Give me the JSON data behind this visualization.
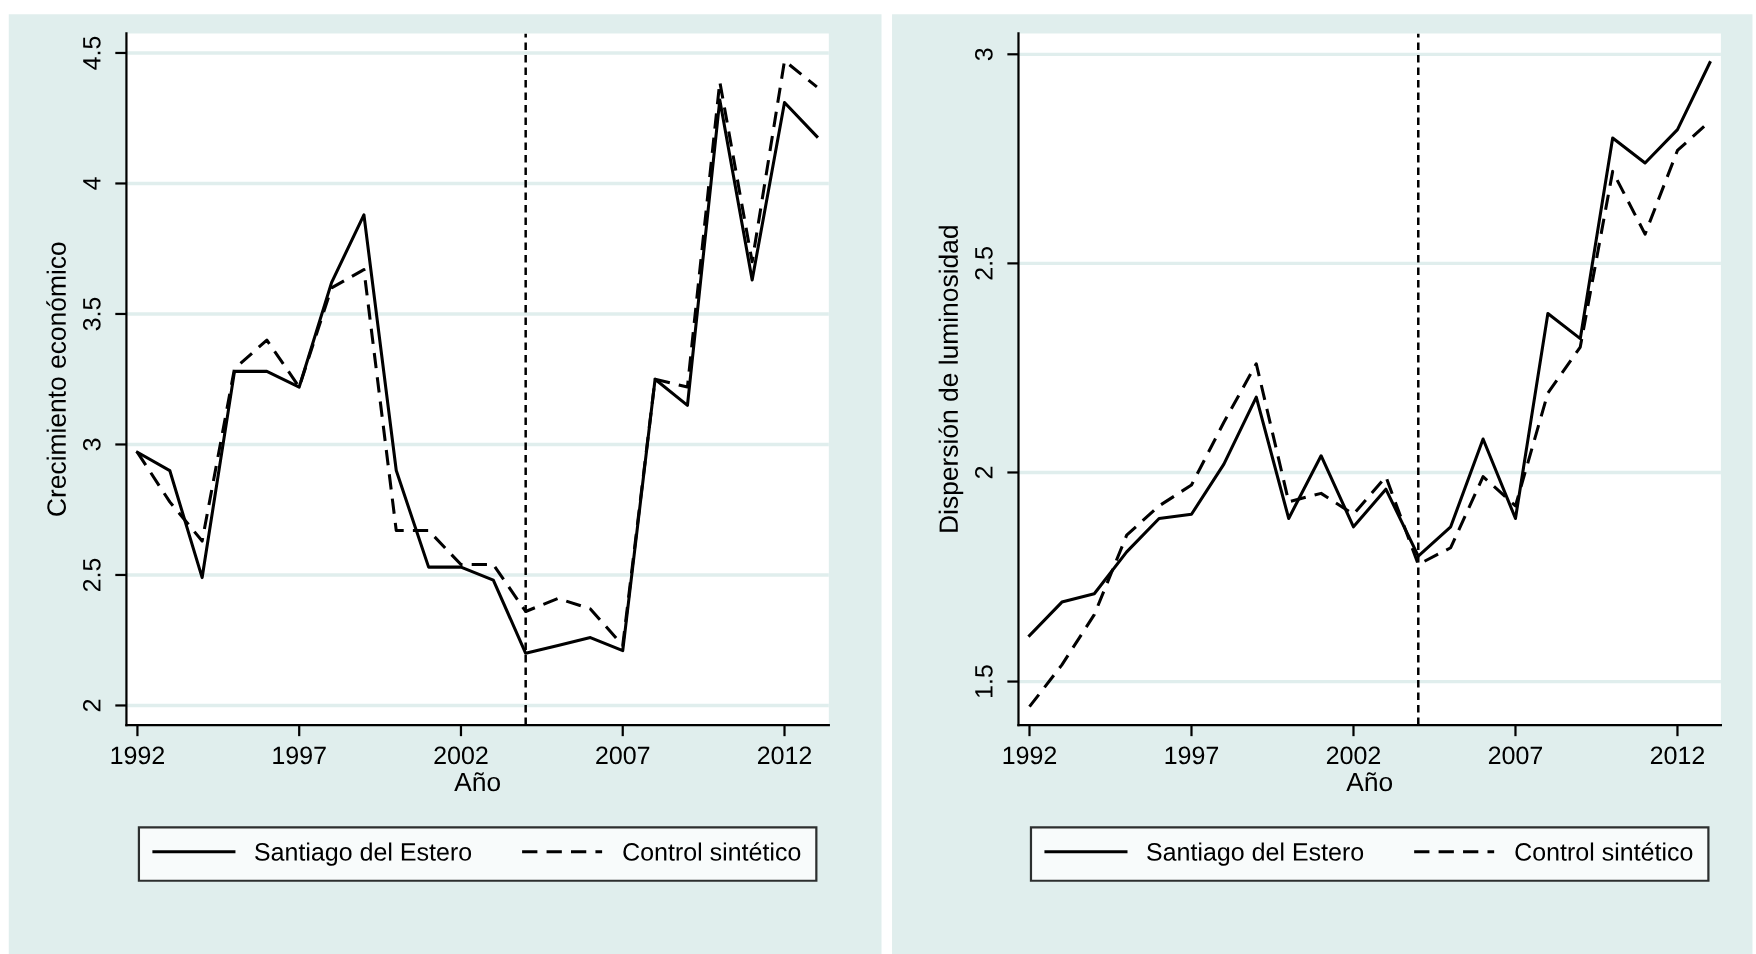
{
  "chart_data": [
    {
      "type": "line",
      "xlabel": "Año",
      "ylabel": "Crecimiento económico",
      "xlim": [
        1991.66,
        2013.37
      ],
      "ylim": [
        1.925,
        4.575
      ],
      "xticks": [
        1992,
        1997,
        2002,
        2007,
        2012
      ],
      "yticks": [
        {
          "value": 2,
          "label": "2"
        },
        {
          "value": 2.5,
          "label": "2.5"
        },
        {
          "value": 3,
          "label": "3"
        },
        {
          "value": 3.5,
          "label": "3.5"
        },
        {
          "value": 4,
          "label": "4"
        },
        {
          "value": 4.5,
          "label": "4.5"
        }
      ],
      "grid": "y",
      "legend": "bottom",
      "x": [
        1992,
        1993,
        1994,
        1995,
        1996,
        1997,
        1998,
        1999,
        2000,
        2001,
        2002,
        2003,
        2004,
        2005,
        2006,
        2007,
        2008,
        2009,
        2010,
        2011,
        2012,
        2013
      ],
      "series": [
        {
          "name": "Santiago del Estero",
          "color": "#000000",
          "line_style": "solid",
          "values": [
            2.97,
            2.9,
            2.49,
            3.28,
            3.28,
            3.22,
            3.62,
            3.88,
            2.9,
            2.53,
            2.53,
            2.48,
            2.2,
            2.23,
            2.26,
            2.21,
            3.25,
            3.15,
            4.32,
            3.63,
            4.31,
            4.18
          ]
        },
        {
          "name": "Control sintético",
          "color": "#000000",
          "line_style": "dashed",
          "values": [
            2.97,
            2.78,
            2.63,
            3.29,
            3.4,
            3.22,
            3.6,
            3.67,
            2.67,
            2.67,
            2.54,
            2.54,
            2.36,
            2.41,
            2.37,
            2.23,
            3.25,
            3.22,
            4.39,
            3.7,
            4.47,
            4.37
          ]
        }
      ],
      "ref_lines": [
        {
          "axis": "x",
          "value": 2004,
          "color": "#000000",
          "line_style": "dotted"
        }
      ]
    },
    {
      "type": "line",
      "xlabel": "Año",
      "ylabel": "Dispersión de luminosidad",
      "xlim": [
        1991.66,
        2013.34
      ],
      "ylim": [
        1.396,
        3.05
      ],
      "xticks": [
        1992,
        1997,
        2002,
        2007,
        2012
      ],
      "yticks": [
        {
          "value": 1.5,
          "label": "1.5"
        },
        {
          "value": 2,
          "label": "2"
        },
        {
          "value": 2.5,
          "label": "2.5"
        },
        {
          "value": 3,
          "label": "3"
        }
      ],
      "grid": "y",
      "legend": "bottom",
      "x": [
        1992,
        1993,
        1994,
        1995,
        1996,
        1997,
        1998,
        1999,
        2000,
        2001,
        2002,
        2003,
        2004,
        2005,
        2006,
        2007,
        2008,
        2009,
        2010,
        2011,
        2012,
        2013
      ],
      "series": [
        {
          "name": "Santiago del Estero",
          "color": "#000000",
          "line_style": "solid",
          "values": [
            1.61,
            1.69,
            1.71,
            1.81,
            1.89,
            1.9,
            2.02,
            2.18,
            1.89,
            2.04,
            1.87,
            1.96,
            1.8,
            1.87,
            2.08,
            1.89,
            2.38,
            2.32,
            2.8,
            2.74,
            2.82,
            2.98
          ]
        },
        {
          "name": "Control sintético",
          "color": "#000000",
          "line_style": "dashed",
          "values": [
            1.44,
            1.54,
            1.66,
            1.85,
            1.92,
            1.97,
            2.12,
            2.26,
            1.93,
            1.95,
            1.9,
            1.99,
            1.78,
            1.82,
            1.99,
            1.92,
            2.19,
            2.3,
            2.72,
            2.57,
            2.77,
            2.84
          ]
        }
      ],
      "ref_lines": [
        {
          "axis": "x",
          "value": 2004,
          "color": "#000000",
          "line_style": "dotted"
        }
      ]
    }
  ]
}
